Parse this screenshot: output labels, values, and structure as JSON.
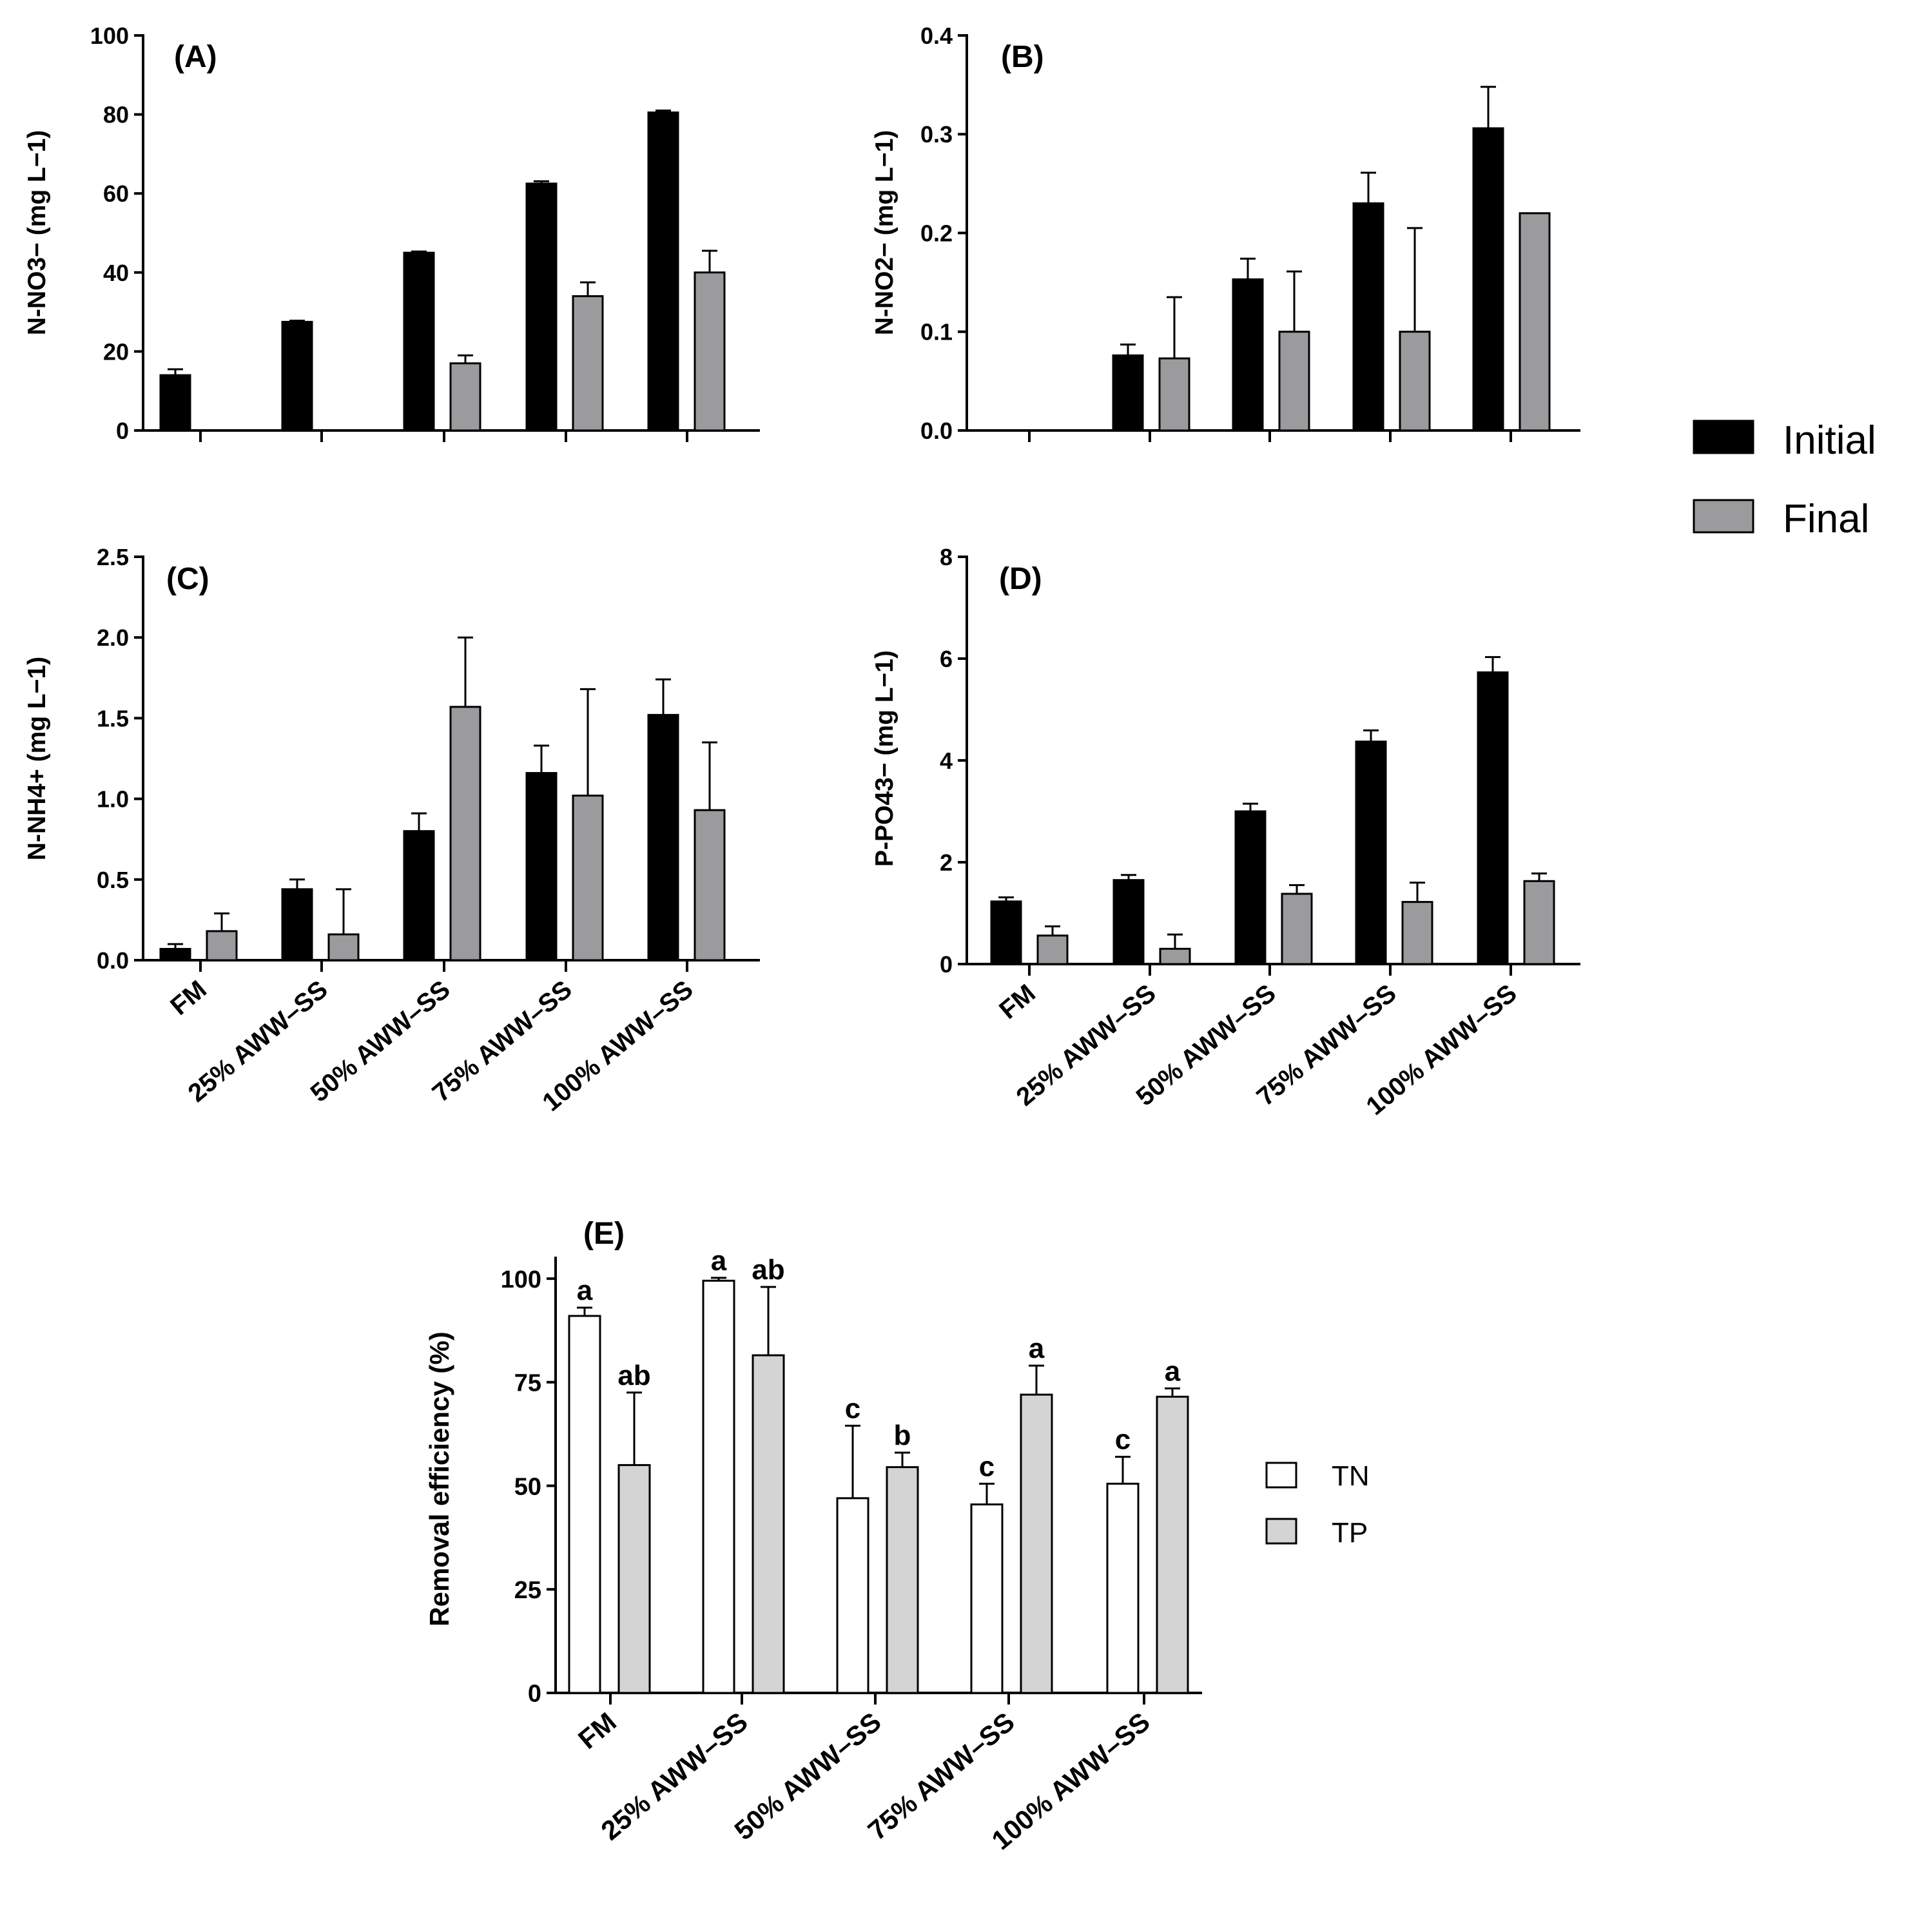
{
  "colors": {
    "initial": "#000000",
    "final": "#9b9b9d",
    "tn": "#ffffff",
    "tp": "#d4d4d4",
    "axis": "#000000"
  },
  "legend_top": {
    "items": [
      {
        "label": "Initial",
        "color_key": "initial"
      },
      {
        "label": "Final",
        "color_key": "final"
      }
    ]
  },
  "legend_bottom": {
    "items": [
      {
        "label": "TN",
        "color_key": "tn"
      },
      {
        "label": "TP",
        "color_key": "tp"
      }
    ]
  },
  "chart_data": [
    {
      "id": "A",
      "type": "bar",
      "panel_label": "(A)",
      "ylabel": "N-NO3− (mg L−1)",
      "ylim": [
        0,
        100
      ],
      "yticks": [
        0,
        20,
        40,
        60,
        80,
        100
      ],
      "ytick_labels": [
        "0",
        "20",
        "40",
        "60",
        "80",
        "100"
      ],
      "categories": [
        "FM",
        "25% AWW–SS",
        "50% AWW–SS",
        "75% AWW–SS",
        "100% AWW–SS"
      ],
      "show_category_labels": false,
      "series": [
        {
          "name": "Initial",
          "values": [
            14,
            27.5,
            45,
            62.5,
            80.5
          ],
          "errors": [
            1.5,
            0.3,
            0.3,
            0.6,
            0.5
          ]
        },
        {
          "name": "Final",
          "values": [
            0,
            0,
            17,
            34,
            40
          ],
          "errors": [
            0,
            0,
            2,
            3.5,
            5.5
          ]
        }
      ]
    },
    {
      "id": "B",
      "type": "bar",
      "panel_label": "(B)",
      "ylabel": "N-NO2− (mg L−1)",
      "ylim": [
        0,
        0.4
      ],
      "yticks": [
        0,
        0.1,
        0.2,
        0.3,
        0.4
      ],
      "ytick_labels": [
        "0.0",
        "0.1",
        "0.2",
        "0.3",
        "0.4"
      ],
      "categories": [
        "FM",
        "25% AWW–SS",
        "50% AWW–SS",
        "75% AWW–SS",
        "100% AWW–SS"
      ],
      "show_category_labels": false,
      "series": [
        {
          "name": "Initial",
          "values": [
            0,
            0.076,
            0.153,
            0.23,
            0.306
          ],
          "errors": [
            0,
            0.011,
            0.021,
            0.031,
            0.042
          ]
        },
        {
          "name": "Final",
          "values": [
            0,
            0.073,
            0.1,
            0.1,
            0.22
          ],
          "errors": [
            0,
            0.062,
            0.061,
            0.105,
            0
          ]
        }
      ]
    },
    {
      "id": "C",
      "type": "bar",
      "panel_label": "(C)",
      "ylabel": "N-NH4+ (mg L−1)",
      "ylim": [
        0,
        2.5
      ],
      "yticks": [
        0,
        0.5,
        1.0,
        1.5,
        2.0,
        2.5
      ],
      "ytick_labels": [
        "0.0",
        "0.5",
        "1.0",
        "1.5",
        "2.0",
        "2.5"
      ],
      "categories": [
        "FM",
        "25% AWW–SS",
        "50% AWW–SS",
        "75% AWW–SS",
        "100% AWW–SS"
      ],
      "show_category_labels": true,
      "series": [
        {
          "name": "Initial",
          "values": [
            0.07,
            0.44,
            0.8,
            1.16,
            1.52
          ],
          "errors": [
            0.03,
            0.06,
            0.11,
            0.17,
            0.22
          ]
        },
        {
          "name": "Final",
          "values": [
            0.18,
            0.16,
            1.57,
            1.02,
            0.93
          ],
          "errors": [
            0.11,
            0.28,
            0.43,
            0.66,
            0.42
          ]
        }
      ]
    },
    {
      "id": "D",
      "type": "bar",
      "panel_label": "(D)",
      "ylabel": "P-PO43− (mg L−1)",
      "ylim": [
        0,
        8
      ],
      "yticks": [
        0,
        2,
        4,
        6,
        8
      ],
      "ytick_labels": [
        "0",
        "2",
        "4",
        "6",
        "8"
      ],
      "categories": [
        "FM",
        "25% AWW–SS",
        "50% AWW–SS",
        "75% AWW–SS",
        "100% AWW–SS"
      ],
      "show_category_labels": true,
      "series": [
        {
          "name": "Initial",
          "values": [
            1.23,
            1.65,
            3.0,
            4.37,
            5.73
          ],
          "errors": [
            0.08,
            0.1,
            0.15,
            0.22,
            0.3
          ]
        },
        {
          "name": "Final",
          "values": [
            0.56,
            0.3,
            1.38,
            1.22,
            1.63
          ],
          "errors": [
            0.18,
            0.28,
            0.17,
            0.38,
            0.15
          ]
        }
      ]
    },
    {
      "id": "E",
      "type": "bar",
      "panel_label": "(E)",
      "ylabel": "Removal efficiency (%)",
      "ylim": [
        0,
        105
      ],
      "yticks": [
        0,
        25,
        50,
        75,
        100
      ],
      "ytick_labels": [
        "0",
        "25",
        "50",
        "75",
        "100"
      ],
      "categories": [
        "FM",
        "25% AWW–SS",
        "50% AWW–SS",
        "75% AWW–SS",
        "100% AWW–SS"
      ],
      "show_category_labels": true,
      "series": [
        {
          "name": "TN",
          "values": [
            91,
            99.5,
            47,
            45.5,
            50.5
          ],
          "errors": [
            2,
            0.7,
            17.5,
            5,
            6.5
          ],
          "annotations": [
            "a",
            "a",
            "c",
            "c",
            "c"
          ]
        },
        {
          "name": "TP",
          "values": [
            55,
            81.5,
            54.5,
            72,
            71.5
          ],
          "errors": [
            17.5,
            16.5,
            3.5,
            7,
            2
          ],
          "annotations": [
            "ab",
            "ab",
            "b",
            "a",
            "a"
          ]
        }
      ]
    }
  ]
}
